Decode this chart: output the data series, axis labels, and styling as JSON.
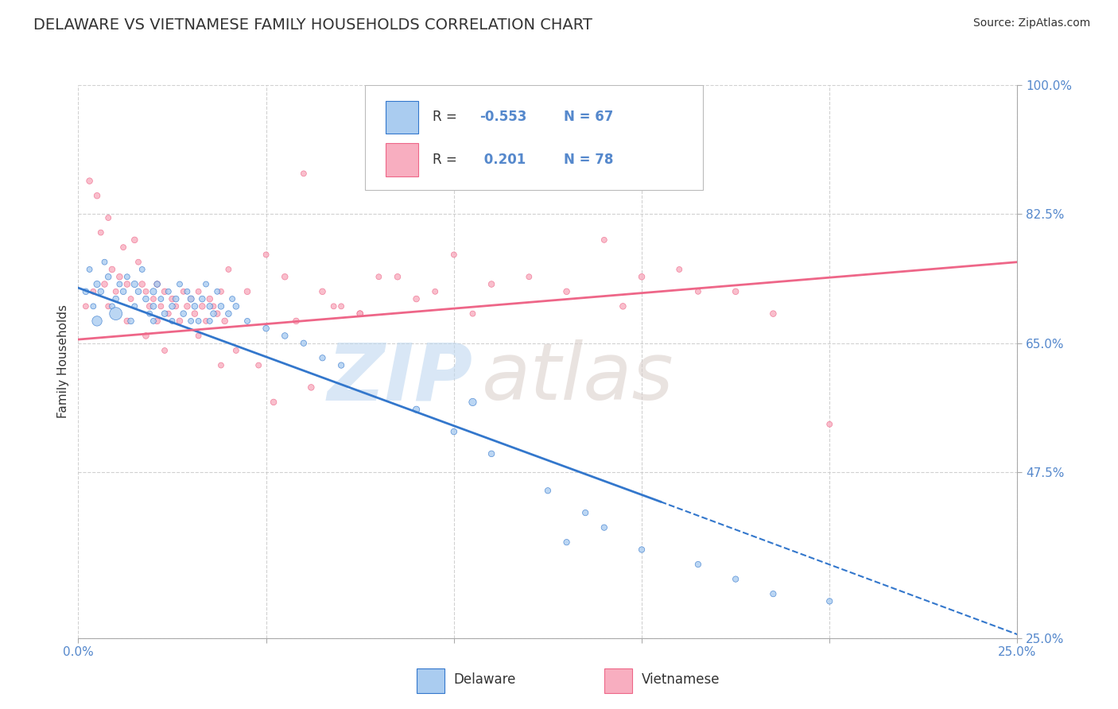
{
  "title": "DELAWARE VS VIETNAMESE FAMILY HOUSEHOLDS CORRELATION CHART",
  "source": "Source: ZipAtlas.com",
  "ylabel_label": "Family Households",
  "x_min": 0.0,
  "x_max": 25.0,
  "y_min": 25.0,
  "y_max": 100.0,
  "yticks": [
    25.0,
    47.5,
    65.0,
    82.5,
    100.0
  ],
  "xticks": [
    0.0,
    5.0,
    10.0,
    15.0,
    20.0,
    25.0
  ],
  "delaware_color": "#aaccf0",
  "vietnamese_color": "#f8aec0",
  "trend_delaware_color": "#3377cc",
  "trend_vietnamese_color": "#ee6688",
  "watermark_zip_color": "#c0d8f0",
  "watermark_atlas_color": "#d8ccc8",
  "grid_color": "#cccccc",
  "background_color": "#ffffff",
  "text_color_blue": "#5588cc",
  "text_color_dark": "#333333",
  "font_size_title": 14,
  "font_size_axis": 11,
  "font_size_legend": 12,
  "font_size_source": 10,
  "delaware_points_x": [
    0.2,
    0.3,
    0.4,
    0.5,
    0.5,
    0.6,
    0.7,
    0.8,
    0.9,
    1.0,
    1.0,
    1.1,
    1.2,
    1.3,
    1.4,
    1.5,
    1.5,
    1.6,
    1.7,
    1.8,
    1.9,
    2.0,
    2.0,
    2.0,
    2.1,
    2.2,
    2.3,
    2.4,
    2.5,
    2.5,
    2.6,
    2.7,
    2.8,
    2.9,
    3.0,
    3.0,
    3.1,
    3.2,
    3.3,
    3.4,
    3.5,
    3.5,
    3.6,
    3.7,
    3.8,
    4.0,
    4.1,
    4.2,
    4.5,
    5.0,
    5.5,
    6.0,
    6.5,
    7.0,
    9.0,
    10.0,
    11.0,
    12.5,
    13.5,
    14.0,
    15.0,
    16.5,
    17.5,
    18.5,
    20.0,
    10.5,
    13.0
  ],
  "delaware_points_y": [
    72,
    75,
    70,
    73,
    68,
    72,
    76,
    74,
    70,
    71,
    69,
    73,
    72,
    74,
    68,
    73,
    70,
    72,
    75,
    71,
    69,
    72,
    70,
    68,
    73,
    71,
    69,
    72,
    70,
    68,
    71,
    73,
    69,
    72,
    71,
    68,
    70,
    68,
    71,
    73,
    70,
    68,
    69,
    72,
    70,
    69,
    71,
    70,
    68,
    67,
    66,
    65,
    63,
    62,
    56,
    53,
    50,
    45,
    42,
    40,
    37,
    35,
    33,
    31,
    30,
    57,
    38
  ],
  "delaware_sizes": [
    30,
    25,
    25,
    35,
    80,
    30,
    25,
    30,
    25,
    30,
    130,
    25,
    30,
    25,
    30,
    35,
    25,
    30,
    25,
    30,
    25,
    35,
    30,
    25,
    30,
    25,
    30,
    25,
    30,
    25,
    30,
    25,
    30,
    25,
    35,
    25,
    30,
    25,
    30,
    25,
    30,
    25,
    30,
    25,
    30,
    30,
    25,
    30,
    25,
    30,
    30,
    28,
    28,
    28,
    35,
    30,
    30,
    28,
    28,
    28,
    28,
    28,
    28,
    28,
    28,
    45,
    28
  ],
  "vietnamese_points_x": [
    0.2,
    0.3,
    0.4,
    0.5,
    0.6,
    0.7,
    0.8,
    0.9,
    1.0,
    1.1,
    1.2,
    1.3,
    1.4,
    1.5,
    1.6,
    1.7,
    1.8,
    1.9,
    2.0,
    2.1,
    2.2,
    2.3,
    2.4,
    2.5,
    2.6,
    2.7,
    2.8,
    2.9,
    3.0,
    3.1,
    3.2,
    3.3,
    3.4,
    3.5,
    3.6,
    3.7,
    3.8,
    3.9,
    4.0,
    4.5,
    5.0,
    5.5,
    6.0,
    6.5,
    7.0,
    7.5,
    8.0,
    9.0,
    10.0,
    11.0,
    12.0,
    13.0,
    14.0,
    15.0,
    16.0,
    17.5,
    20.0,
    5.8,
    6.8,
    8.5,
    10.5,
    14.5,
    16.5,
    18.5,
    4.2,
    2.1,
    3.2,
    1.3,
    0.8,
    1.8,
    2.3,
    5.2,
    3.8,
    6.2,
    4.8,
    7.5,
    9.5
  ],
  "vietnamese_points_y": [
    70,
    87,
    72,
    85,
    80,
    73,
    82,
    75,
    72,
    74,
    78,
    73,
    71,
    79,
    76,
    73,
    72,
    70,
    71,
    73,
    70,
    72,
    69,
    71,
    70,
    68,
    72,
    70,
    71,
    69,
    72,
    70,
    68,
    71,
    70,
    69,
    72,
    68,
    75,
    72,
    77,
    74,
    88,
    72,
    70,
    69,
    74,
    71,
    77,
    73,
    74,
    72,
    79,
    74,
    75,
    72,
    54,
    68,
    70,
    74,
    69,
    70,
    72,
    69,
    64,
    68,
    66,
    68,
    70,
    66,
    64,
    57,
    62,
    59,
    62,
    69,
    72
  ],
  "vietnamese_sizes": [
    25,
    30,
    25,
    30,
    25,
    30,
    25,
    30,
    25,
    30,
    25,
    30,
    25,
    30,
    25,
    30,
    25,
    30,
    25,
    30,
    25,
    30,
    25,
    30,
    25,
    30,
    25,
    30,
    25,
    30,
    25,
    30,
    25,
    30,
    25,
    30,
    25,
    30,
    25,
    30,
    25,
    30,
    25,
    30,
    25,
    30,
    25,
    30,
    25,
    30,
    25,
    30,
    25,
    30,
    25,
    30,
    25,
    30,
    25,
    30,
    25,
    30,
    25,
    30,
    25,
    30,
    25,
    30,
    25,
    30,
    25,
    30,
    25,
    30,
    25,
    30,
    25
  ],
  "trend_del_x0": 0.0,
  "trend_del_x1": 15.5,
  "trend_del_y0": 72.5,
  "trend_del_y1": 43.5,
  "trend_del_dash_x0": 15.5,
  "trend_del_dash_x1": 25.0,
  "trend_del_dash_y0": 43.5,
  "trend_del_dash_y1": 25.5,
  "trend_vie_x0": 0.0,
  "trend_vie_x1": 25.0,
  "trend_vie_y0": 65.5,
  "trend_vie_y1": 76.0
}
